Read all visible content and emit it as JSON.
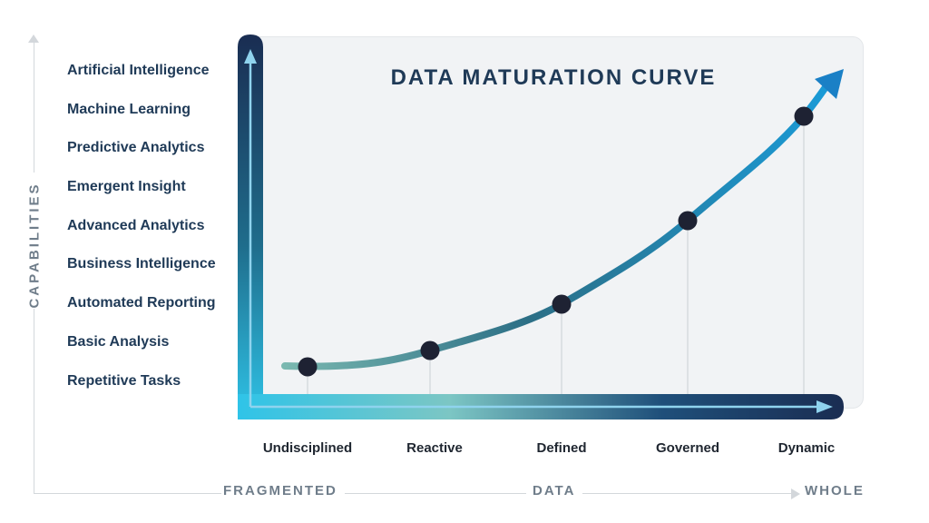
{
  "title": "DATA MATURATION CURVE",
  "vertical_axis": {
    "label": "CAPABILITIES",
    "levels": [
      "Artificial Intelligence",
      "Machine Learning",
      "Predictive Analytics",
      "Emergent Insight",
      "Advanced Analytics",
      "Business Intelligence",
      "Automated Reporting",
      "Basic Analysis",
      "Repetitive Tasks"
    ]
  },
  "stages": [
    "Undisciplined",
    "Reactive",
    "Defined",
    "Governed",
    "Dynamic"
  ],
  "bottom_axis": {
    "left": "FRAGMENTED",
    "center": "DATA",
    "right": "WHOLE"
  },
  "colors": {
    "title": "#1f3a57",
    "curve_start": "#7ab8b0",
    "curve_mid": "#2c6f86",
    "curve_end": "#1a9ad6",
    "axis_dark": "#1a2d52",
    "axis_light": "#2fc4e8",
    "marker": "#1e2233",
    "muted": "#6f7d8a"
  }
}
